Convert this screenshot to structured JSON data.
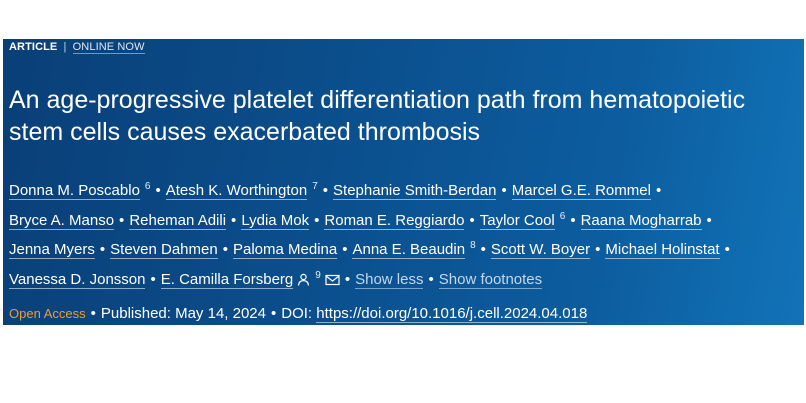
{
  "header": {
    "article_label": "ARTICLE",
    "separator": "|",
    "online_label": "ONLINE NOW"
  },
  "title": "An age-progressive platelet differentiation path from hematopoietic stem cells causes exacerbated thrombosis",
  "authors": {
    "a1": "Donna M. Poscablo",
    "a1_sup": "6",
    "a2": "Atesh K. Worthington",
    "a2_sup": "7",
    "a3": "Stephanie Smith-Berdan",
    "a4": "Marcel G.E. Rommel",
    "a5": "Bryce A. Manso",
    "a6": "Reheman Adili",
    "a7": "Lydia Mok",
    "a8": "Roman E. Reggiardo",
    "a9": "Taylor Cool",
    "a9_sup": "6",
    "a10": "Raana Mogharrab",
    "a11": "Jenna Myers",
    "a12": "Steven Dahmen",
    "a13": "Paloma Medina",
    "a14": "Anna E. Beaudin",
    "a14_sup": "8",
    "a15": "Scott W. Boyer",
    "a16": "Michael Holinstat",
    "a17": "Vanessa D. Jonsson",
    "a18": "E. Camilla Forsberg",
    "a18_sup": "9",
    "show_less": "Show less",
    "show_footnotes": "Show footnotes",
    "person_icon": "person-icon",
    "email_icon": "envelope-icon"
  },
  "publication": {
    "open_access": "Open Access",
    "published": "Published: May 14, 2024",
    "doi_label": "DOI:",
    "doi": "https://doi.org/10.1016/j.cell.2024.04.018"
  },
  "colors": {
    "banner": "#0b4e8c",
    "open_access": "#f39a2d"
  }
}
